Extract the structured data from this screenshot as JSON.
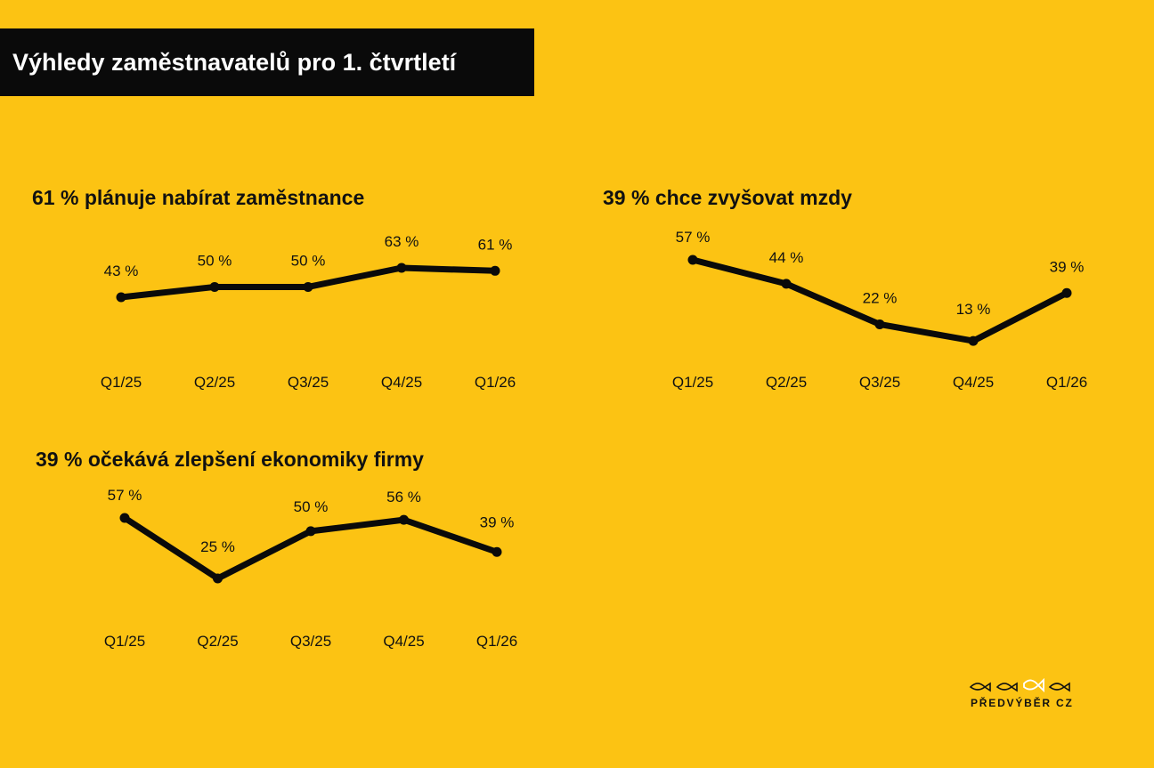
{
  "page_title": "Výhledy zaměstnavatelů pro 1. čtvrtletí",
  "colors": {
    "background": "#FCC313",
    "line": "#0A0A0A",
    "title_bar": "#0A0A0A",
    "title_text": "#FFFFFF",
    "logo_accent": "#FFFFFF"
  },
  "chart_data": [
    {
      "type": "line",
      "title": "61 % plánuje nabírat zaměstnance",
      "categories": [
        "Q1/25",
        "Q2/25",
        "Q3/25",
        "Q4/25",
        "Q1/26"
      ],
      "values": [
        43,
        50,
        50,
        63,
        61
      ],
      "labels": [
        "43 %",
        "50 %",
        "50 %",
        "63 %",
        "61 %"
      ],
      "unit": "%"
    },
    {
      "type": "line",
      "title": "39 % chce zvyšovat mzdy",
      "categories": [
        "Q1/25",
        "Q2/25",
        "Q3/25",
        "Q4/25",
        "Q1/26"
      ],
      "values": [
        57,
        44,
        22,
        13,
        39
      ],
      "labels": [
        "57 %",
        "44 %",
        "22 %",
        "13 %",
        "39 %"
      ],
      "unit": "%"
    },
    {
      "type": "line",
      "title": "39 % očekává zlepšení ekonomiky firmy",
      "categories": [
        "Q1/25",
        "Q2/25",
        "Q3/25",
        "Q4/25",
        "Q1/26"
      ],
      "values": [
        57,
        25,
        50,
        56,
        39
      ],
      "labels": [
        "57 %",
        "25 %",
        "50 %",
        "56 %",
        "39 %"
      ],
      "unit": "%"
    }
  ],
  "logo": {
    "text": "PŘEDVÝBĚR CZ",
    "icon": "four-fish-icon"
  }
}
